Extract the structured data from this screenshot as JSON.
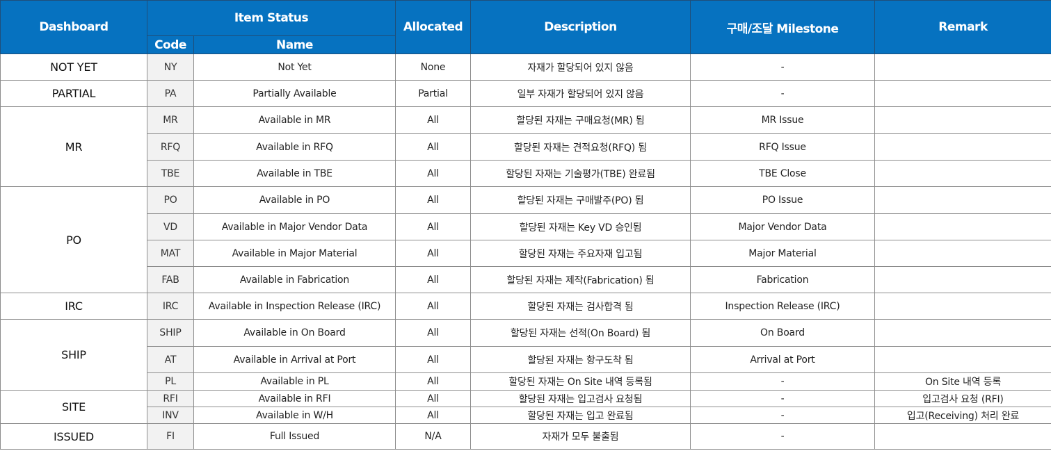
{
  "header": {
    "dashboard": "Dashboard",
    "item_status": "Item Status",
    "code": "Code",
    "name": "Name",
    "allocated": "Allocated",
    "description": "Description",
    "milestone": "구매/조달 Milestone",
    "remark": "Remark"
  },
  "groups": [
    {
      "dashboard": "NOT YET",
      "rows": [
        {
          "code": "NY",
          "name": "Not Yet",
          "allocated": "None",
          "description": "자재가 할당되어 있지 않음",
          "milestone": "-",
          "remark": ""
        }
      ]
    },
    {
      "dashboard": "PARTIAL",
      "rows": [
        {
          "code": "PA",
          "name": "Partially Available",
          "allocated": "Partial",
          "description": "일부 자재가 할당되어 있지 않음",
          "milestone": "-",
          "remark": ""
        }
      ]
    },
    {
      "dashboard": "MR",
      "rows": [
        {
          "code": "MR",
          "name": "Available in MR",
          "allocated": "All",
          "description": "할당된 자재는 구매요청(MR) 됨",
          "milestone": "MR Issue",
          "remark": ""
        },
        {
          "code": "RFQ",
          "name": "Available in RFQ",
          "allocated": "All",
          "description": "할당된 자재는 견적요청(RFQ) 됨",
          "milestone": "RFQ Issue",
          "remark": ""
        },
        {
          "code": "TBE",
          "name": "Available in TBE",
          "allocated": "All",
          "description": "할당된 자재는 기술평가(TBE) 완료됨",
          "milestone": "TBE Close",
          "remark": ""
        }
      ]
    },
    {
      "dashboard": "PO",
      "rows": [
        {
          "code": "PO",
          "name": "Available in PO",
          "allocated": "All",
          "description": "할당된 자재는 구매발주(PO) 됨",
          "milestone": "PO Issue",
          "remark": ""
        },
        {
          "code": "VD",
          "name": "Available in Major Vendor Data",
          "allocated": "All",
          "description": "할당된 자재는 Key VD 승인됨",
          "milestone": "Major Vendor Data",
          "remark": ""
        },
        {
          "code": "MAT",
          "name": "Available in Major Material",
          "allocated": "All",
          "description": "할당된 자재는 주요자재 입고됨",
          "milestone": "Major Material",
          "remark": ""
        },
        {
          "code": "FAB",
          "name": "Available in Fabrication",
          "allocated": "All",
          "description": "할당된 자재는 제작(Fabrication) 됨",
          "milestone": "Fabrication",
          "remark": ""
        }
      ]
    },
    {
      "dashboard": "IRC",
      "rows": [
        {
          "code": "IRC",
          "name": "Available in Inspection Release (IRC)",
          "allocated": "All",
          "description": "할당된 자재는 검사합격 됨",
          "milestone": "Inspection Release (IRC)",
          "remark": ""
        }
      ]
    },
    {
      "dashboard": "SHIP",
      "rows": [
        {
          "code": "SHIP",
          "name": "Available in On Board",
          "allocated": "All",
          "description": "할당된 자재는 선적(On Board) 됨",
          "milestone": "On Board",
          "remark": ""
        },
        {
          "code": "AT",
          "name": "Available in Arrival at Port",
          "allocated": "All",
          "description": "할당된 자재는 항구도착 됨",
          "milestone": "Arrival at Port",
          "remark": ""
        },
        {
          "code": "PL",
          "name": "Available in PL",
          "allocated": "All",
          "description": "할당된 자재는 On Site 내역 등록됨",
          "milestone": "-",
          "remark": "On Site 내역 등록"
        }
      ]
    },
    {
      "dashboard": "SITE",
      "rows": [
        {
          "code": "RFI",
          "name": "Available in RFI",
          "allocated": "All",
          "description": "할당된 자재는 입고검사 요청됨",
          "milestone": "-",
          "remark": "입고검사 요청 (RFI)"
        },
        {
          "code": "INV",
          "name": "Available in W/H",
          "allocated": "All",
          "description": "할당된 자재는 입고 완료됨",
          "milestone": "-",
          "remark": "입고(Receiving) 처리 완료"
        }
      ]
    },
    {
      "dashboard": "ISSUED",
      "rows": [
        {
          "code": "FI",
          "name": "Full Issued",
          "allocated": "N/A",
          "description": "자재가 모두 불출됨",
          "milestone": "-",
          "remark": ""
        }
      ]
    }
  ]
}
